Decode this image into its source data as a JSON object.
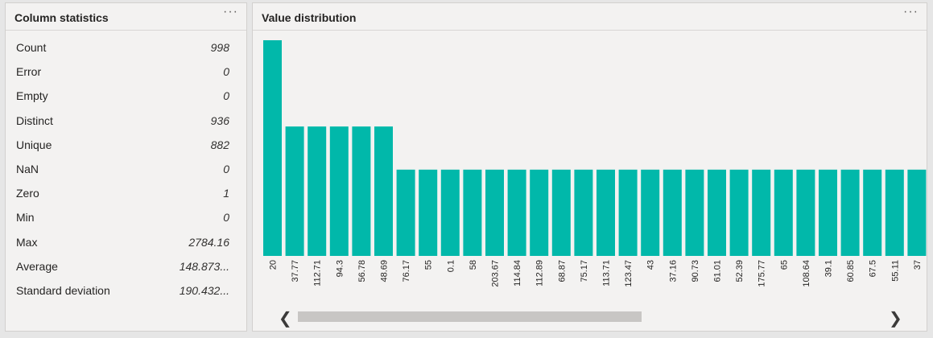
{
  "stats_panel": {
    "title": "Column statistics",
    "more": "···",
    "rows": [
      {
        "label": "Count",
        "value": "998"
      },
      {
        "label": "Error",
        "value": "0"
      },
      {
        "label": "Empty",
        "value": "0"
      },
      {
        "label": "Distinct",
        "value": "936"
      },
      {
        "label": "Unique",
        "value": "882"
      },
      {
        "label": "NaN",
        "value": "0"
      },
      {
        "label": "Zero",
        "value": "1"
      },
      {
        "label": "Min",
        "value": "0"
      },
      {
        "label": "Max",
        "value": "2784.16"
      },
      {
        "label": "Average",
        "value": "148.873..."
      },
      {
        "label": "Standard deviation",
        "value": "190.432..."
      }
    ]
  },
  "dist_panel": {
    "title": "Value distribution",
    "more": "···",
    "scroll_left": "❮",
    "scroll_right": "❯",
    "scroll_thumb_fraction": 0.5
  },
  "chart_data": {
    "type": "bar",
    "color": "#01b8aa",
    "categories": [
      "20",
      "37.77",
      "112.71",
      "94.3",
      "56.78",
      "48.69",
      "76.17",
      "55",
      "0.1",
      "58",
      "203.67",
      "114.84",
      "112.89",
      "68.87",
      "75.17",
      "113.71",
      "123.47",
      "43",
      "37.16",
      "90.73",
      "61.01",
      "52.39",
      "175.77",
      "65",
      "108.64",
      "39.1",
      "60.85",
      "67.5",
      "55.11",
      "37"
    ],
    "values": [
      5,
      3,
      3,
      3,
      3,
      3,
      2,
      2,
      2,
      2,
      2,
      2,
      2,
      2,
      2,
      2,
      2,
      2,
      2,
      2,
      2,
      2,
      2,
      2,
      2,
      2,
      2,
      2,
      2,
      2
    ],
    "ylim": [
      0,
      5
    ]
  }
}
